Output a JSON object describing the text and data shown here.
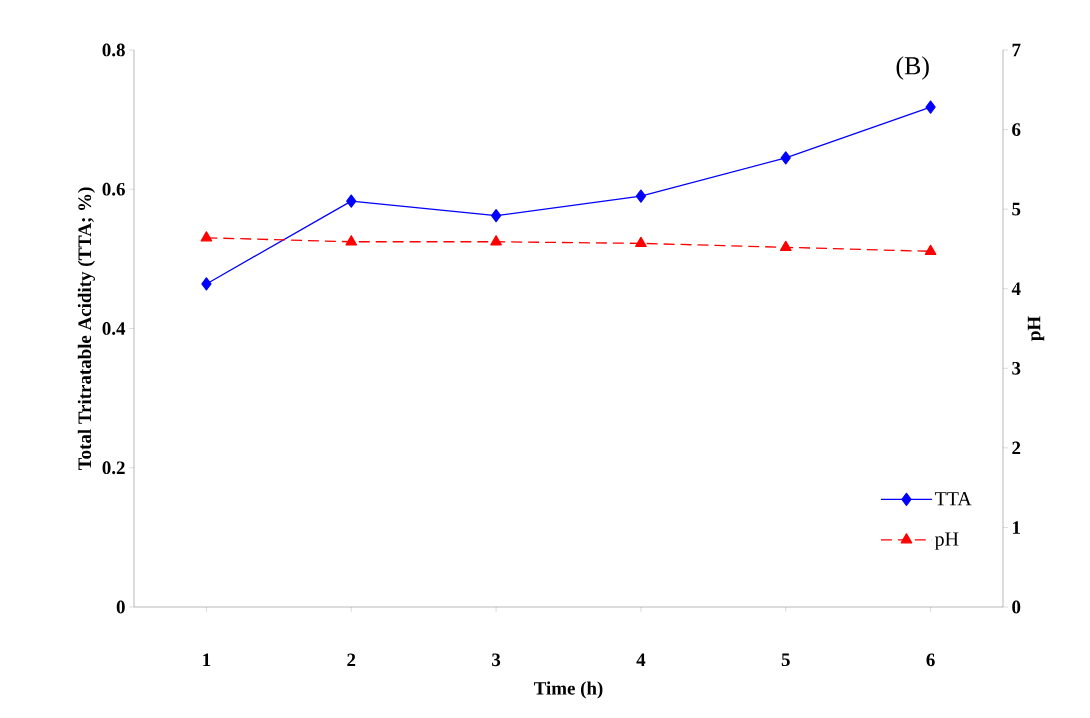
{
  "chart_data": {
    "type": "line",
    "xlabel": "Time  (h)",
    "ylabel": "Total Tritratable Acidity (TTA; %)",
    "y2label": "pH",
    "categories": [
      "1",
      "2",
      "3",
      "4",
      "5",
      "6"
    ],
    "series": [
      {
        "name": "TTA",
        "color": "#0000ff",
        "values": [
          0.464,
          0.583,
          0.562,
          0.59,
          0.645,
          0.718
        ],
        "marker": "diamond",
        "line_style": "solid"
      },
      {
        "name": "pH",
        "color": "#ff0000",
        "values": [
          4.64,
          4.59,
          4.59,
          4.57,
          4.52,
          4.47
        ],
        "marker": "triangle",
        "line_style": "dashed",
        "axis": "y2"
      }
    ],
    "ylim": [
      0,
      0.8
    ],
    "yticks": [
      0,
      0.2,
      0.4,
      0.6,
      0.8
    ],
    "y2lim": [
      0,
      7
    ],
    "y2ticks": [
      0,
      1,
      2,
      3,
      4,
      5,
      6,
      7
    ],
    "legend": "bottom right",
    "grid": false,
    "annotations": [
      "(B)"
    ]
  }
}
